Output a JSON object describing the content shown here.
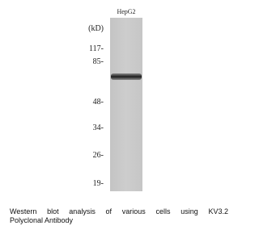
{
  "blot": {
    "lane_label": "HepG2",
    "unit": "(kD)",
    "markers": [
      "117-",
      "85-",
      "48-",
      "34-",
      "26-",
      "19-"
    ]
  },
  "caption": {
    "lines": [
      "Western blot analysis of various cells using KV3.2",
      "Polyclonal Antibody"
    ]
  }
}
